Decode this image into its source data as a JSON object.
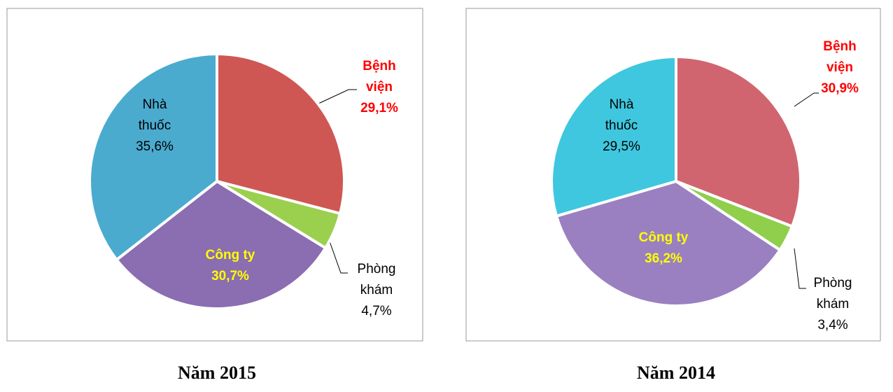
{
  "chart_data": [
    {
      "type": "pie",
      "title": "Năm 2015",
      "categories": [
        "Bệnh viện",
        "Phòng khám",
        "Công ty",
        "Nhà thuốc"
      ],
      "values": [
        29.1,
        4.7,
        30.7,
        35.6
      ],
      "value_labels": [
        "29,1%",
        "4,7%",
        "30,7%",
        "35,6%"
      ],
      "colors": [
        "#cf5753",
        "#9bcf4e",
        "#8b6db1",
        "#4aabcf"
      ]
    },
    {
      "type": "pie",
      "title": "Năm 2014",
      "categories": [
        "Bệnh viện",
        "Phòng khám",
        "Công ty",
        "Nhà thuốc"
      ],
      "values": [
        30.9,
        3.4,
        36.2,
        29.5
      ],
      "value_labels": [
        "30,9%",
        "3,4%",
        "36,2%",
        "29,5%"
      ],
      "colors": [
        "#d0656f",
        "#8fcf4c",
        "#9a80c1",
        "#3fc7df"
      ]
    }
  ]
}
